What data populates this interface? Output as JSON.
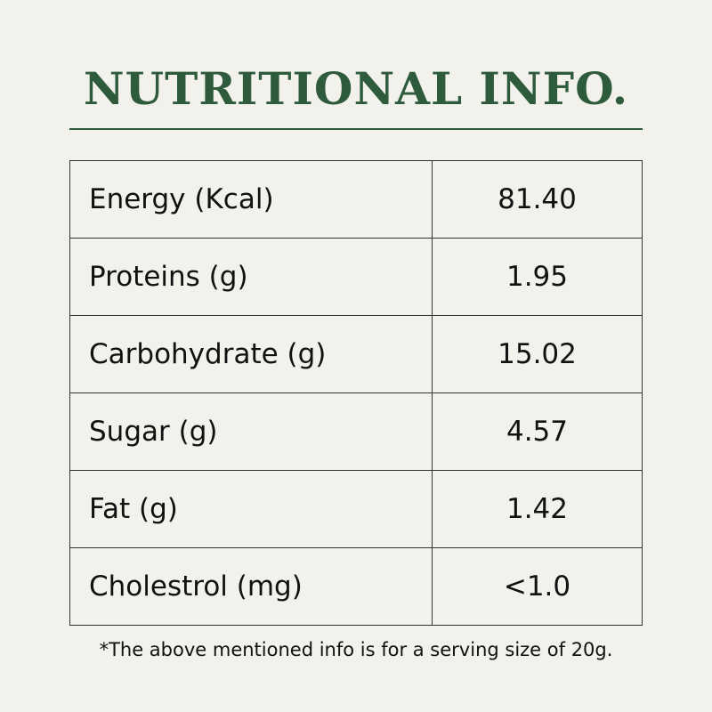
{
  "header": {
    "title": "NUTRITIONAL INFO."
  },
  "table": {
    "rows": [
      [
        "Energy (Kcal)",
        "81.40"
      ],
      [
        "Proteins (g)",
        "1.95"
      ],
      [
        "Carbohydrate (g)",
        "15.02"
      ],
      [
        "Sugar (g)",
        "4.57"
      ],
      [
        "Fat (g)",
        "1.42"
      ],
      [
        "Cholestrol (mg)",
        "<1.0"
      ]
    ]
  },
  "footnote": "*The above mentioned info is for a serving size of 20g."
}
